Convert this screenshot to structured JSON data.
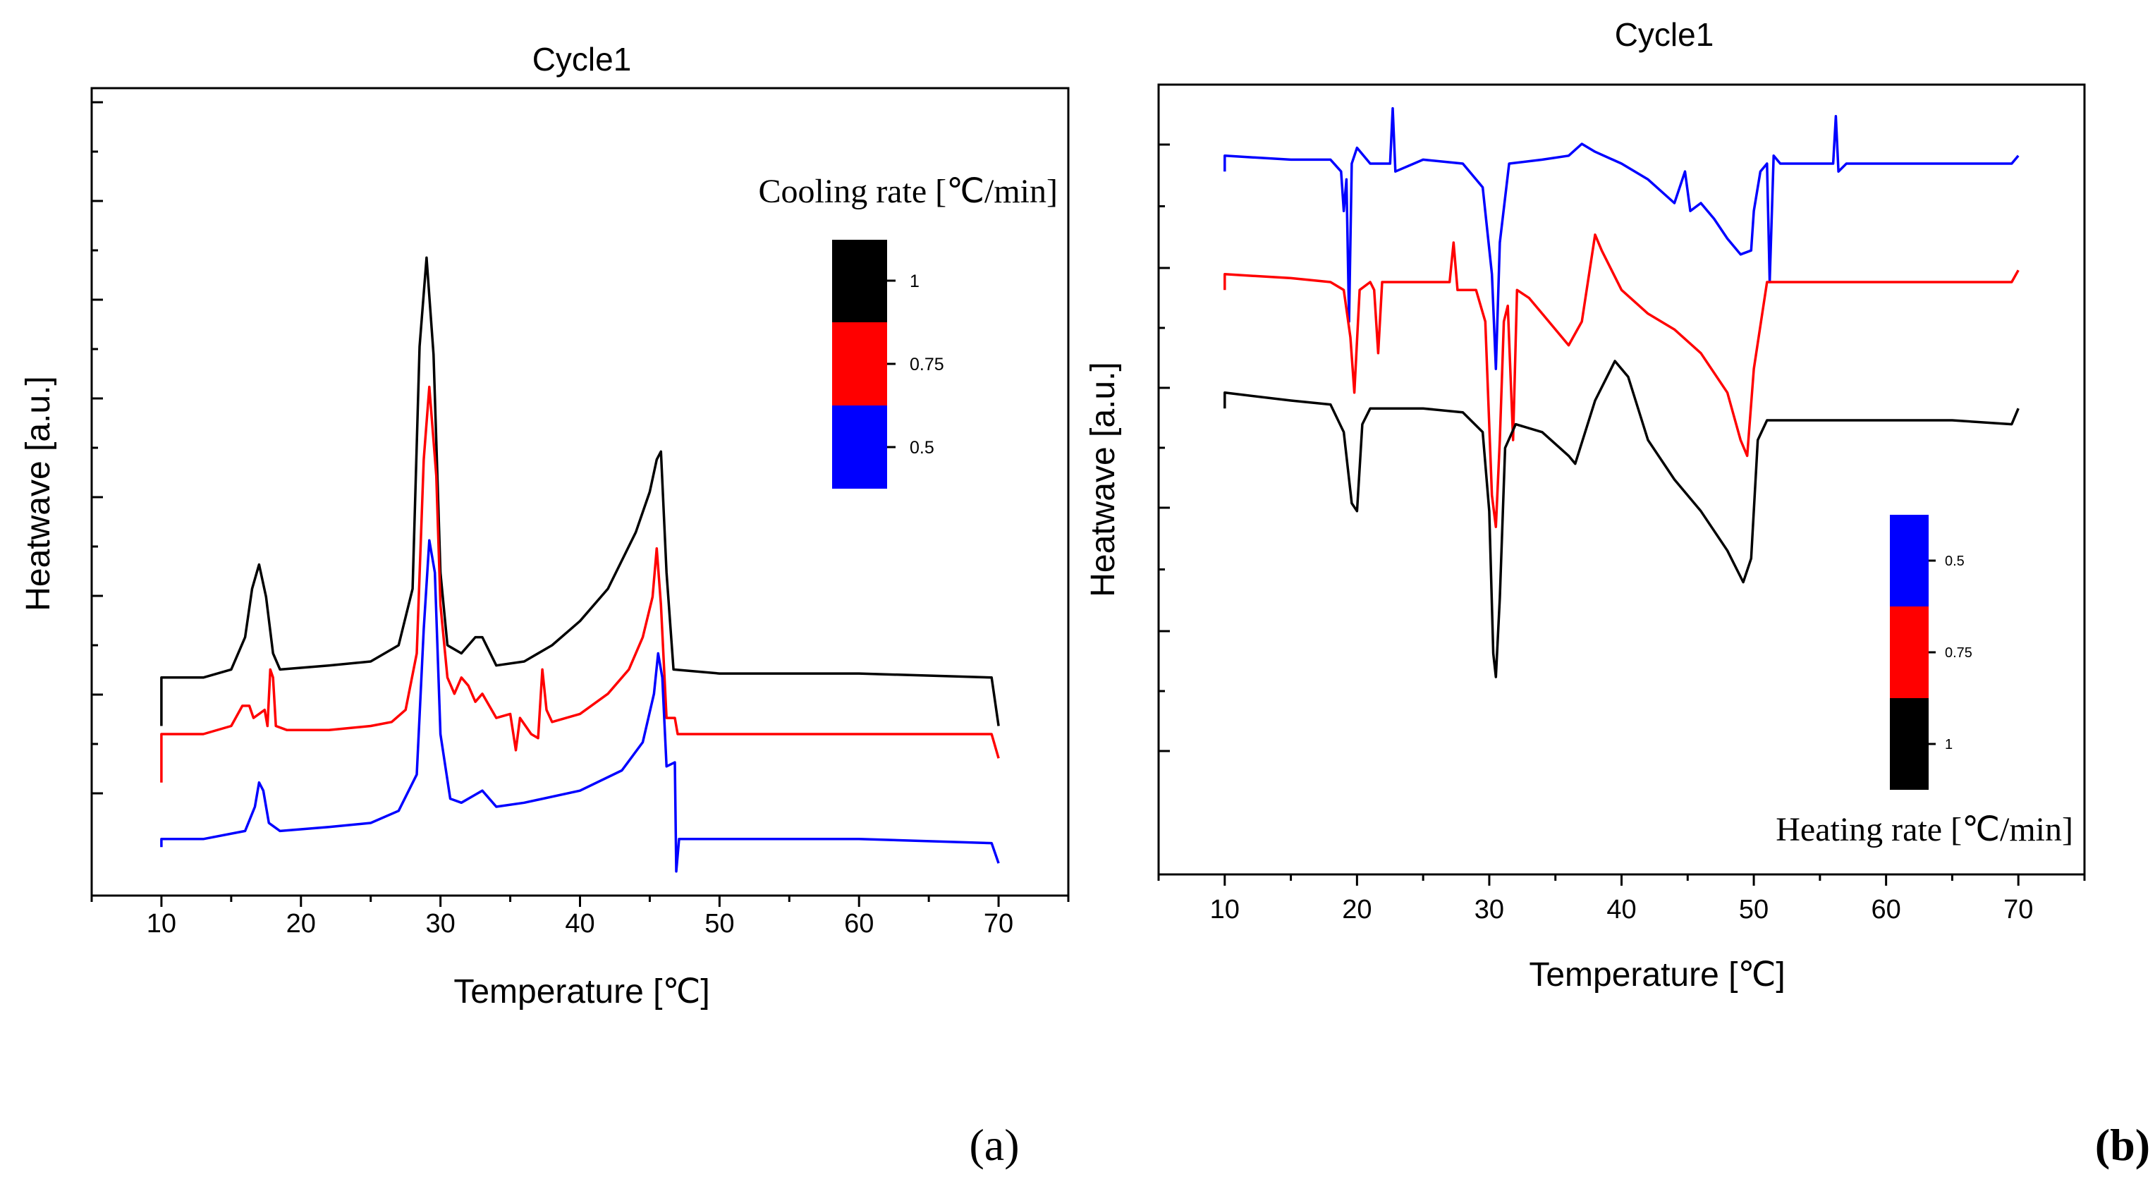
{
  "chart_data": [
    {
      "panel": "(a)",
      "type": "line",
      "title": "Cycle1",
      "xlabel": "Temperature [℃]",
      "ylabel": "Heatwave [a.u.]",
      "xlim": [
        5,
        75
      ],
      "xticks": [
        "10",
        "20",
        "30",
        "40",
        "50",
        "60",
        "70"
      ],
      "ylim": [
        0,
        100
      ],
      "y_tick_labels": "none",
      "grid": false,
      "legend_title": "Cooling rate [℃/min]",
      "legend_style": "colour-block",
      "legend_placement": "top-right",
      "legend_order": [
        "1",
        "0.75",
        "0.5"
      ],
      "series": [
        {
          "name": "1",
          "color": "#000000",
          "points": [
            [
              10,
              21
            ],
            [
              10,
              27
            ],
            [
              13,
              27
            ],
            [
              15,
              28
            ],
            [
              16,
              32
            ],
            [
              16.5,
              38
            ],
            [
              17,
              41
            ],
            [
              17.5,
              37
            ],
            [
              18,
              30
            ],
            [
              18.5,
              28
            ],
            [
              22,
              28.5
            ],
            [
              25,
              29
            ],
            [
              27,
              31
            ],
            [
              28,
              38
            ],
            [
              28.5,
              68
            ],
            [
              29,
              79
            ],
            [
              29.5,
              67
            ],
            [
              30,
              40
            ],
            [
              30.5,
              31
            ],
            [
              31.5,
              30
            ],
            [
              32.5,
              32
            ],
            [
              33,
              32
            ],
            [
              34,
              28.5
            ],
            [
              36,
              29
            ],
            [
              38,
              31
            ],
            [
              40,
              34
            ],
            [
              42,
              38
            ],
            [
              44,
              45
            ],
            [
              45,
              50
            ],
            [
              45.5,
              54
            ],
            [
              45.8,
              55
            ],
            [
              46.2,
              40
            ],
            [
              46.7,
              28
            ],
            [
              50,
              27.5
            ],
            [
              60,
              27.5
            ],
            [
              69.5,
              27
            ],
            [
              70,
              21
            ]
          ]
        },
        {
          "name": "0.75",
          "color": "#ff0000",
          "points": [
            [
              10,
              14
            ],
            [
              10,
              20
            ],
            [
              13,
              20
            ],
            [
              15,
              21
            ],
            [
              15.8,
              23.5
            ],
            [
              16.3,
              23.5
            ],
            [
              16.6,
              22
            ],
            [
              17,
              22.5
            ],
            [
              17.4,
              23
            ],
            [
              17.6,
              21
            ],
            [
              17.8,
              28
            ],
            [
              18,
              27
            ],
            [
              18.2,
              21
            ],
            [
              19,
              20.5
            ],
            [
              22,
              20.5
            ],
            [
              25,
              21
            ],
            [
              26.5,
              21.5
            ],
            [
              27.5,
              23
            ],
            [
              28.3,
              30
            ],
            [
              28.8,
              54
            ],
            [
              29.2,
              63
            ],
            [
              29.7,
              52
            ],
            [
              30,
              36
            ],
            [
              30.5,
              27
            ],
            [
              31,
              25
            ],
            [
              31.5,
              27
            ],
            [
              32,
              26
            ],
            [
              32.5,
              24
            ],
            [
              33,
              25
            ],
            [
              34,
              22
            ],
            [
              35,
              22.5
            ],
            [
              35.4,
              18
            ],
            [
              35.7,
              22
            ],
            [
              36.5,
              20
            ],
            [
              37,
              19.5
            ],
            [
              37.3,
              28
            ],
            [
              37.6,
              23
            ],
            [
              38,
              21.5
            ],
            [
              40,
              22.5
            ],
            [
              42,
              25
            ],
            [
              43.5,
              28
            ],
            [
              44.5,
              32
            ],
            [
              45.2,
              37
            ],
            [
              45.5,
              43
            ],
            [
              45.8,
              36
            ],
            [
              46.2,
              22
            ],
            [
              46.8,
              22
            ],
            [
              47,
              20
            ],
            [
              50,
              20
            ],
            [
              60,
              20
            ],
            [
              69.5,
              20
            ],
            [
              70,
              17
            ]
          ]
        },
        {
          "name": "0.5",
          "color": "#0000ff",
          "points": [
            [
              10,
              6
            ],
            [
              10,
              7
            ],
            [
              13,
              7
            ],
            [
              16,
              8
            ],
            [
              16.7,
              11
            ],
            [
              17,
              14
            ],
            [
              17.3,
              13
            ],
            [
              17.7,
              9
            ],
            [
              18.5,
              8
            ],
            [
              22,
              8.5
            ],
            [
              25,
              9
            ],
            [
              27,
              10.5
            ],
            [
              28.3,
              15
            ],
            [
              28.8,
              33
            ],
            [
              29.2,
              44
            ],
            [
              29.6,
              40
            ],
            [
              30,
              20
            ],
            [
              30.7,
              12
            ],
            [
              31.5,
              11.5
            ],
            [
              32.5,
              12.5
            ],
            [
              33,
              13
            ],
            [
              34,
              11
            ],
            [
              36,
              11.5
            ],
            [
              40,
              13
            ],
            [
              43,
              15.5
            ],
            [
              44.5,
              19
            ],
            [
              45.3,
              25
            ],
            [
              45.6,
              30
            ],
            [
              45.9,
              27
            ],
            [
              46.2,
              16
            ],
            [
              46.8,
              16.5
            ],
            [
              46.9,
              3
            ],
            [
              47.1,
              7
            ],
            [
              50,
              7
            ],
            [
              60,
              7
            ],
            [
              69.5,
              6.5
            ],
            [
              70,
              4
            ]
          ]
        }
      ]
    },
    {
      "panel": "(b)",
      "type": "line",
      "title": "Cycle1",
      "xlabel": "Temperature [℃]",
      "ylabel": "Heatwave [a.u.]",
      "xlim": [
        5,
        75
      ],
      "xticks": [
        "10",
        "20",
        "30",
        "40",
        "50",
        "60",
        "70"
      ],
      "ylim": [
        0,
        100
      ],
      "y_tick_labels": "none",
      "grid": false,
      "legend_title": "Heating rate [℃/min]",
      "legend_style": "colour-block",
      "legend_placement": "bottom-right",
      "legend_order": [
        "0.5",
        "0.75",
        "1"
      ],
      "series": [
        {
          "name": "0.5",
          "color": "#0000ff",
          "points": [
            [
              10,
              89
            ],
            [
              10,
              91
            ],
            [
              15,
              90.5
            ],
            [
              18,
              90.5
            ],
            [
              18.8,
              89
            ],
            [
              19,
              84
            ],
            [
              19.2,
              88
            ],
            [
              19.4,
              70
            ],
            [
              19.6,
              90
            ],
            [
              20,
              92
            ],
            [
              21,
              90
            ],
            [
              22.5,
              90
            ],
            [
              22.7,
              97
            ],
            [
              22.9,
              89
            ],
            [
              25,
              90.5
            ],
            [
              28,
              90
            ],
            [
              29.5,
              87
            ],
            [
              30.2,
              76
            ],
            [
              30.5,
              64
            ],
            [
              30.8,
              80
            ],
            [
              31.5,
              90
            ],
            [
              34,
              90.5
            ],
            [
              36,
              91
            ],
            [
              37,
              92.5
            ],
            [
              38,
              91.5
            ],
            [
              40,
              90
            ],
            [
              42,
              88
            ],
            [
              44,
              85
            ],
            [
              44.8,
              89
            ],
            [
              45.2,
              84
            ],
            [
              46,
              85
            ],
            [
              47,
              83
            ],
            [
              48,
              80.5
            ],
            [
              49,
              78.5
            ],
            [
              49.8,
              79
            ],
            [
              50,
              84
            ],
            [
              50.5,
              89
            ],
            [
              51,
              90
            ],
            [
              51.2,
              75
            ],
            [
              51.5,
              91
            ],
            [
              52,
              90
            ],
            [
              55,
              90
            ],
            [
              56,
              90
            ],
            [
              56.2,
              96
            ],
            [
              56.4,
              89
            ],
            [
              57,
              90
            ],
            [
              60,
              90
            ],
            [
              65,
              90
            ],
            [
              69.5,
              90
            ],
            [
              70,
              91
            ]
          ]
        },
        {
          "name": "0.75",
          "color": "#ff0000",
          "points": [
            [
              10,
              74
            ],
            [
              10,
              76
            ],
            [
              15,
              75.5
            ],
            [
              18,
              75
            ],
            [
              19,
              74
            ],
            [
              19.5,
              68
            ],
            [
              19.8,
              61
            ],
            [
              20.2,
              74
            ],
            [
              21,
              75
            ],
            [
              21.3,
              74
            ],
            [
              21.6,
              66
            ],
            [
              21.9,
              75
            ],
            [
              23,
              75
            ],
            [
              27,
              75
            ],
            [
              27.3,
              80
            ],
            [
              27.6,
              74
            ],
            [
              29,
              74
            ],
            [
              29.7,
              70
            ],
            [
              30.2,
              48
            ],
            [
              30.5,
              44
            ],
            [
              30.8,
              55
            ],
            [
              31.1,
              70
            ],
            [
              31.4,
              72
            ],
            [
              31.8,
              55
            ],
            [
              32.1,
              74
            ],
            [
              33,
              73
            ],
            [
              34,
              71
            ],
            [
              36,
              67
            ],
            [
              37,
              70
            ],
            [
              38,
              81
            ],
            [
              38.5,
              79
            ],
            [
              40,
              74
            ],
            [
              42,
              71
            ],
            [
              44,
              69
            ],
            [
              46,
              66
            ],
            [
              48,
              61
            ],
            [
              49,
              55
            ],
            [
              49.5,
              53
            ],
            [
              50,
              64
            ],
            [
              51,
              75
            ],
            [
              55,
              75
            ],
            [
              60,
              75
            ],
            [
              69.5,
              75
            ],
            [
              70,
              76.5
            ]
          ]
        },
        {
          "name": "1",
          "color": "#000000",
          "points": [
            [
              10,
              59
            ],
            [
              10,
              61
            ],
            [
              15,
              60
            ],
            [
              18,
              59.5
            ],
            [
              19,
              56
            ],
            [
              19.6,
              47
            ],
            [
              20,
              46
            ],
            [
              20.4,
              57
            ],
            [
              21,
              59
            ],
            [
              25,
              59
            ],
            [
              28,
              58.5
            ],
            [
              29.5,
              56
            ],
            [
              30,
              46
            ],
            [
              30.3,
              28
            ],
            [
              30.5,
              25
            ],
            [
              30.8,
              35
            ],
            [
              31.2,
              54
            ],
            [
              32,
              57
            ],
            [
              34,
              56
            ],
            [
              36,
              53
            ],
            [
              36.5,
              52
            ],
            [
              38,
              60
            ],
            [
              39.5,
              65
            ],
            [
              40.5,
              63
            ],
            [
              42,
              55
            ],
            [
              44,
              50
            ],
            [
              46,
              46
            ],
            [
              48,
              41
            ],
            [
              49.2,
              37
            ],
            [
              49.8,
              40
            ],
            [
              50.3,
              55
            ],
            [
              51,
              57.5
            ],
            [
              55,
              57.5
            ],
            [
              60,
              57.5
            ],
            [
              65,
              57.5
            ],
            [
              69.5,
              57
            ],
            [
              70,
              59
            ]
          ]
        }
      ]
    }
  ],
  "panel_labels": {
    "a": "(a)",
    "b": "(b)"
  }
}
